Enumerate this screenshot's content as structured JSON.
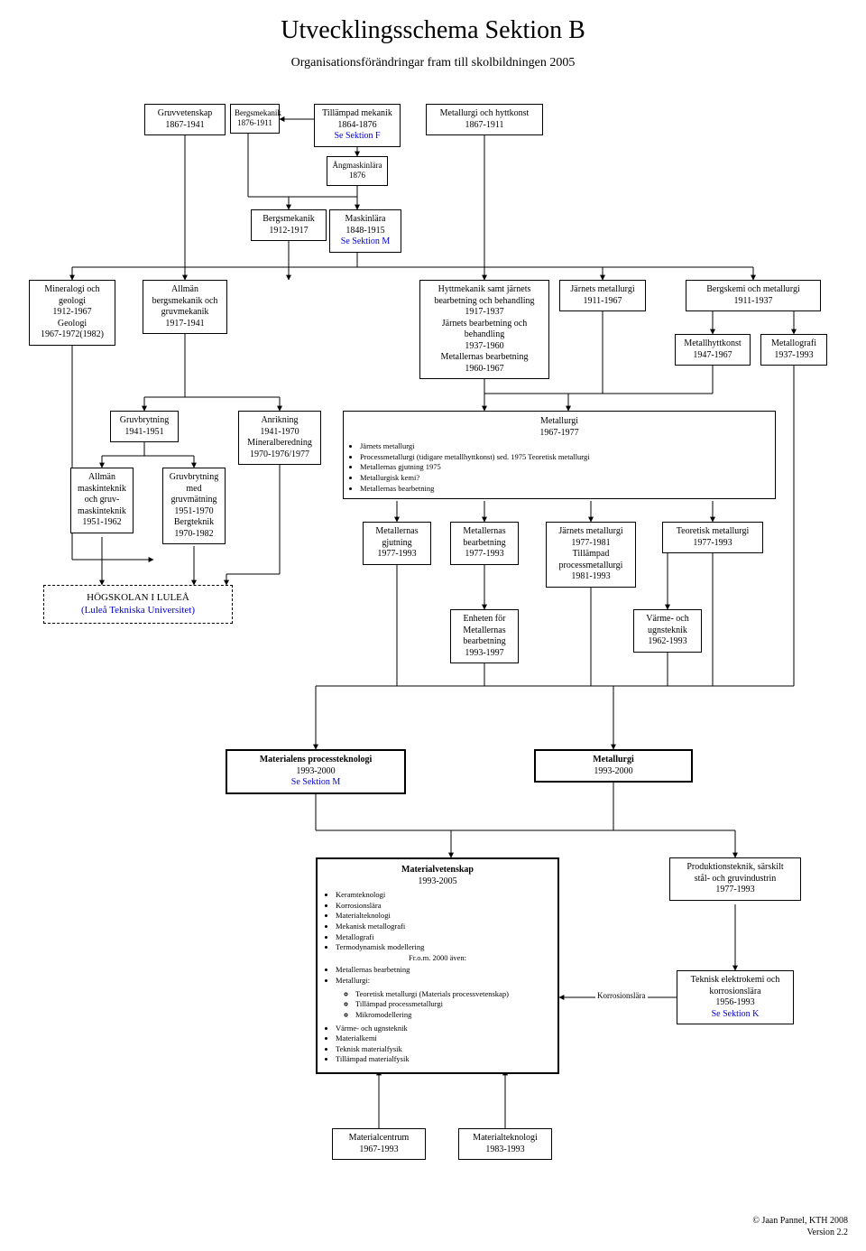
{
  "title": "Utvecklingsschema Sektion B",
  "subtitle": "Organisationsförändringar fram till skolbildningen 2005",
  "footer": {
    "line1": "© Jaan Pannel, KTH 2008",
    "line2": "Version 2.2"
  },
  "edge_label": "Korrosionslära",
  "boxes": {
    "gruvvet": {
      "l1": "Gruvvetenskap",
      "l2": "1867-1941"
    },
    "bergs1": {
      "l1": "Bergsmekanik",
      "l2": "1876-1911"
    },
    "tillmek": {
      "l1": "Tillämpad mekanik",
      "l2": "1864-1876",
      "link": "Se Sektion F"
    },
    "methytt": {
      "l1": "Metallurgi och hyttkonst",
      "l2": "1867-1911"
    },
    "angmask": {
      "l1": "Ångmaskinlära",
      "l2": "1876"
    },
    "bergs2": {
      "l1": "Bergsmekanik",
      "l2": "1912-1917"
    },
    "masklara": {
      "l1": "Maskinlära",
      "l2": "1848-1915",
      "link": "Se Sektion M"
    },
    "mineral": {
      "l1": "Mineralogi och",
      "l2": "geologi",
      "l3": "1912-1967",
      "l4": "Geologi",
      "l5": "1967-1972(1982)"
    },
    "allmanbergs": {
      "l1": "Allmän",
      "l2": "bergsmekanik och",
      "l3": "gruvmekanik",
      "l4": "1917-1941"
    },
    "hyttmek": {
      "l1": "Hyttmekanik samt järnets",
      "l2": "bearbetning och behandling",
      "l3": "1917-1937",
      "l4": "Järnets bearbetning och",
      "l5": "behandling",
      "l6": "1937-1960",
      "l7": "Metallernas bearbetning",
      "l8": "1960-1967"
    },
    "jarnmet": {
      "l1": "Järnets metallurgi",
      "l2": "1911-1967"
    },
    "bergskemi": {
      "l1": "Bergskemi och metallurgi",
      "l2": "1911-1937"
    },
    "metallhytt": {
      "l1": "Metallhyttkonst",
      "l2": "1947-1967"
    },
    "metallogr": {
      "l1": "Metallografi",
      "l2": "1937-1993"
    },
    "gruvbr1": {
      "l1": "Gruvbrytning",
      "l2": "1941-1951"
    },
    "anrik": {
      "l1": "Anrikning",
      "l2": "1941-1970",
      "l3": "Mineralberedning",
      "l4": "1970-1976/1977"
    },
    "allmanmask": {
      "l1": "Allmän",
      "l2": "maskinteknik",
      "l3": "och gruv-",
      "l4": "maskinteknik",
      "l5": "1951-1962"
    },
    "gruvbr2": {
      "l1": "Gruvbrytning",
      "l2": "med",
      "l3": "gruvmätning",
      "l4": "1951-1970",
      "l5": "Bergteknik",
      "l6": "1970-1982"
    },
    "lulea": {
      "l1": "HÖGSKOLAN I LULEÅ",
      "l2": "(Luleå Tekniska Universitet)"
    },
    "met6777": {
      "title": "Metallurgi",
      "years": "1967-1977",
      "bullets": [
        "Järnets metallurgi",
        "Processmetallurgi (tidigare metallhyttkonst) sed. 1975 Teoretisk metallurgi",
        "Metallernas gjutning 1975",
        "Metallurgisk kemi?",
        "Metallernas bearbetning"
      ]
    },
    "metgjut": {
      "l1": "Metallernas",
      "l2": "gjutning",
      "l3": "1977-1993"
    },
    "metbear": {
      "l1": "Metallernas",
      "l2": "bearbetning",
      "l3": "1977-1993"
    },
    "jarnmet2": {
      "l1": "Järnets metallurgi",
      "l2": "1977-1981",
      "l3": "Tillämpad",
      "l4": "processmetallurgi",
      "l5": "1981-1993"
    },
    "teormet": {
      "l1": "Teoretisk metallurgi",
      "l2": "1977-1993"
    },
    "enheten": {
      "l1": "Enheten för",
      "l2": "Metallernas",
      "l3": "bearbetning",
      "l4": "1993-1997"
    },
    "varme": {
      "l1": "Värme- och",
      "l2": "ugnsteknik",
      "l3": "1962-1993"
    },
    "matproc": {
      "l1": "Materialens processteknologi",
      "l2": "1993-2000",
      "link": "Se Sektion M"
    },
    "met9300": {
      "l1": "Metallurgi",
      "l2": "1993-2000"
    },
    "matvet": {
      "title": "Materialvetenskap",
      "years": "1993-2005",
      "bullets": [
        "Keramteknologi",
        "Korrosionslära",
        "Materialteknologi",
        "Mekanisk metallografi",
        "Metallografi",
        "Termodynamisk modellering"
      ],
      "midline": "Fr.o.m. 2000 även:",
      "bullets2": [
        "Metallernas bearbetning",
        "Metallurgi:"
      ],
      "subbullets": [
        "Teoretisk metallurgi (Materials processvetenskap)",
        "Tillämpad processmetallurgi",
        "Mikromodellering"
      ],
      "bullets3": [
        "Värme- och ugnsteknik",
        "Materialkemi",
        "Teknisk materialfysik",
        "Tillämpad materialfysik"
      ]
    },
    "prodtek": {
      "l1": "Produktionsteknik, särskilt",
      "l2": "stål- och gruvindustrin",
      "l3": "1977-1993"
    },
    "teknelek": {
      "l1": "Teknisk elektrokemi och",
      "l2": "korrosionslära",
      "l3": "1956-1993",
      "link": "Se Sektion K"
    },
    "matcent": {
      "l1": "Materialcentrum",
      "l2": "1967-1993"
    },
    "mattekn": {
      "l1": "Materialteknologi",
      "l2": "1983-1993"
    }
  }
}
